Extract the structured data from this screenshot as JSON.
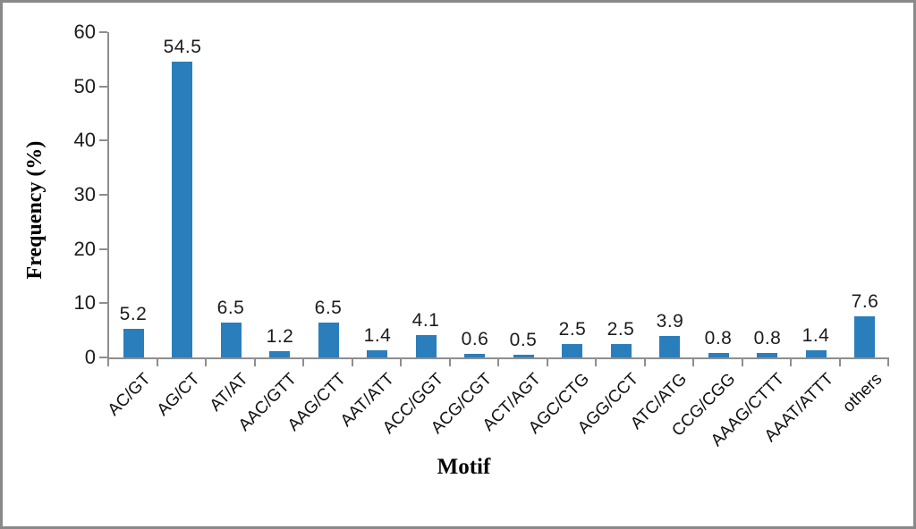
{
  "figure": {
    "background_color": "#ffffff",
    "frame_color": "#898989"
  },
  "chart_data": {
    "type": "bar",
    "title": "",
    "xlabel": "Motif",
    "ylabel": "Frequency (%)",
    "categories": [
      "AC/GT",
      "AG/CT",
      "AT/AT",
      "AAC/GTT",
      "AAG/CTT",
      "AAT/ATT",
      "ACC/GGT",
      "ACG/CGT",
      "ACT/AGT",
      "AGC/CTG",
      "AGG/CCT",
      "ATC/ATG",
      "CCG/CGG",
      "AAAG/CTTT",
      "AAAT/ATTT",
      "others"
    ],
    "values": [
      5.2,
      54.5,
      6.5,
      1.2,
      6.5,
      1.4,
      4.1,
      0.6,
      0.5,
      2.5,
      2.5,
      3.9,
      0.8,
      0.8,
      1.4,
      7.6
    ],
    "data_labels": [
      "5.2",
      "54.5",
      "6.5",
      "1.2",
      "6.5",
      "1.4",
      "4.1",
      "0.6",
      "0.5",
      "2.5",
      "2.5",
      "3.9",
      "0.8",
      "0.8",
      "1.4",
      "7.6"
    ],
    "ylim": [
      0,
      60
    ],
    "yticks": [
      0,
      10,
      20,
      30,
      40,
      50,
      60
    ],
    "grid": false,
    "legend_position": "none",
    "bar_color": "#2b7ebc",
    "axis_color": "#8e8e8e",
    "text_color": "#1c1c1c",
    "category_label_rotation_deg": -45
  }
}
